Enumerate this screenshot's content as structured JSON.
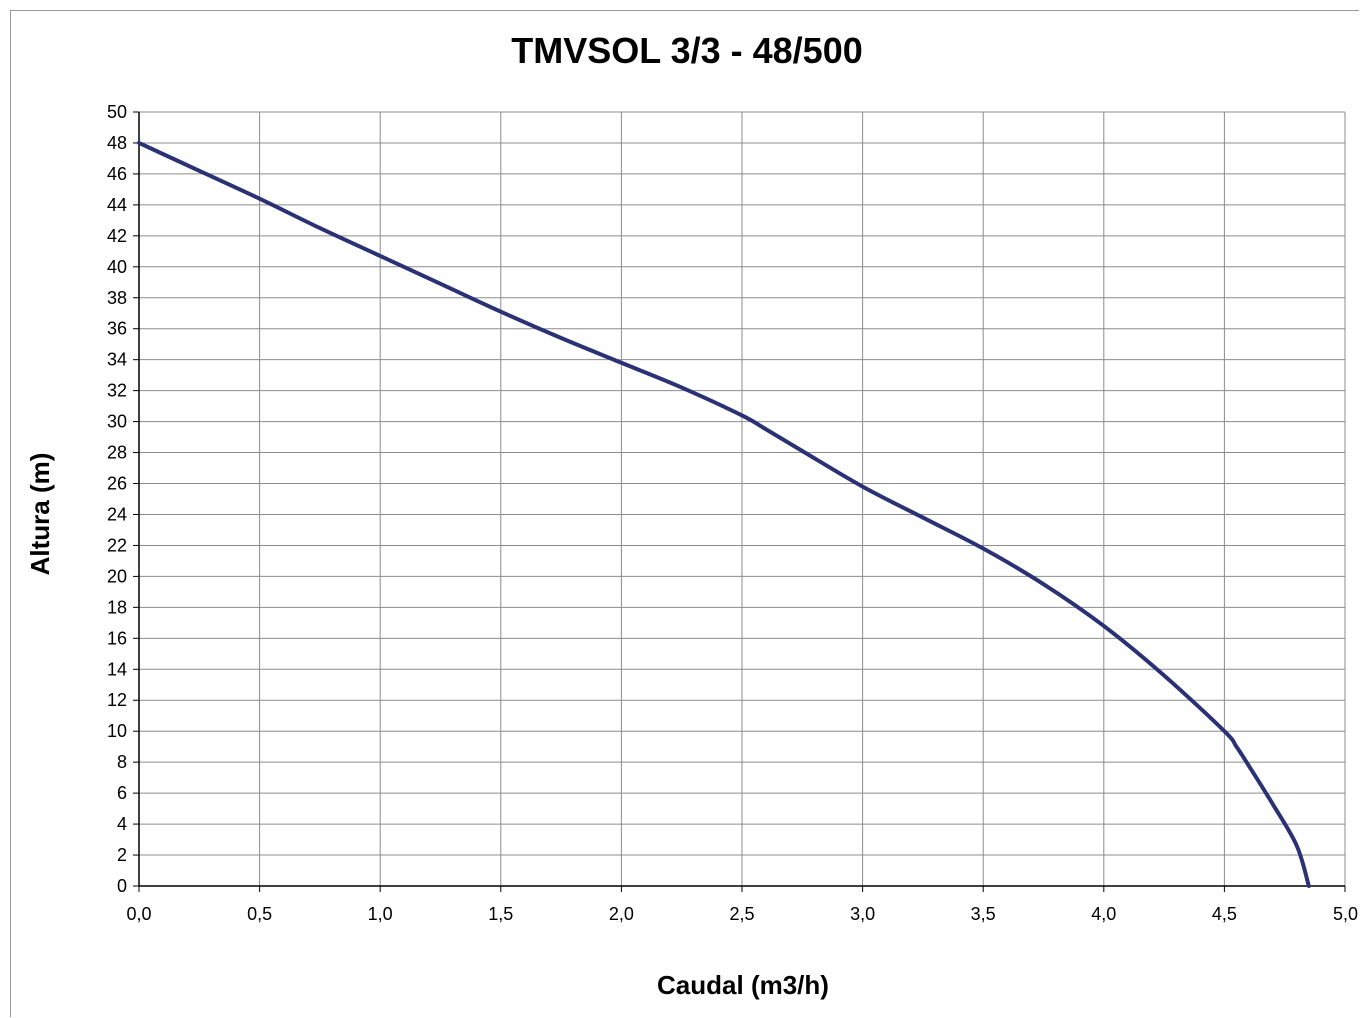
{
  "chart_data": {
    "type": "line",
    "title": "TMVSOL 3/3 - 48/500",
    "xlabel": "Caudal (m3/h)",
    "ylabel": "Altura (m)",
    "xlim": [
      0,
      5
    ],
    "ylim": [
      0,
      50
    ],
    "x_ticks": [
      "0,0",
      "0,5",
      "1,0",
      "1,5",
      "2,0",
      "2,5",
      "3,0",
      "3,5",
      "4,0",
      "4,5",
      "5,0"
    ],
    "y_ticks": [
      "0",
      "2",
      "4",
      "6",
      "8",
      "10",
      "12",
      "14",
      "16",
      "18",
      "20",
      "22",
      "24",
      "26",
      "28",
      "30",
      "32",
      "34",
      "36",
      "38",
      "40",
      "42",
      "44",
      "46",
      "48",
      "50"
    ],
    "grid": true,
    "legend": "none",
    "series": [
      {
        "color": "#2a3275",
        "x": [
          0.0,
          0.25,
          0.5,
          0.75,
          1.0,
          1.25,
          1.5,
          1.75,
          2.0,
          2.25,
          2.5,
          2.6,
          2.75,
          3.0,
          3.25,
          3.5,
          3.75,
          4.0,
          4.25,
          4.5,
          4.55,
          4.6,
          4.7,
          4.8,
          4.85
        ],
        "y": [
          48.0,
          46.2,
          44.4,
          42.5,
          40.7,
          38.9,
          37.1,
          35.4,
          33.8,
          32.2,
          30.4,
          29.5,
          28.1,
          25.8,
          23.8,
          21.8,
          19.5,
          16.8,
          13.6,
          10.0,
          9.0,
          7.8,
          5.3,
          2.6,
          0.0
        ]
      }
    ]
  }
}
